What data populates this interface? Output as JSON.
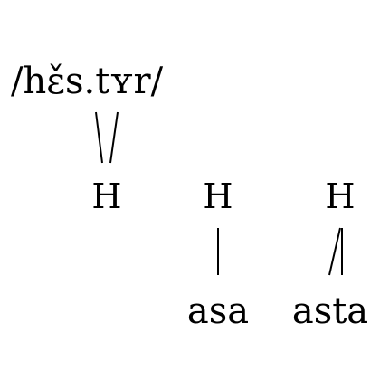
{
  "diagram": {
    "form": "/hɛ̌s.tʏr/",
    "tones": [
      "H",
      "H",
      "H"
    ],
    "words": [
      "asa",
      "asta"
    ]
  }
}
